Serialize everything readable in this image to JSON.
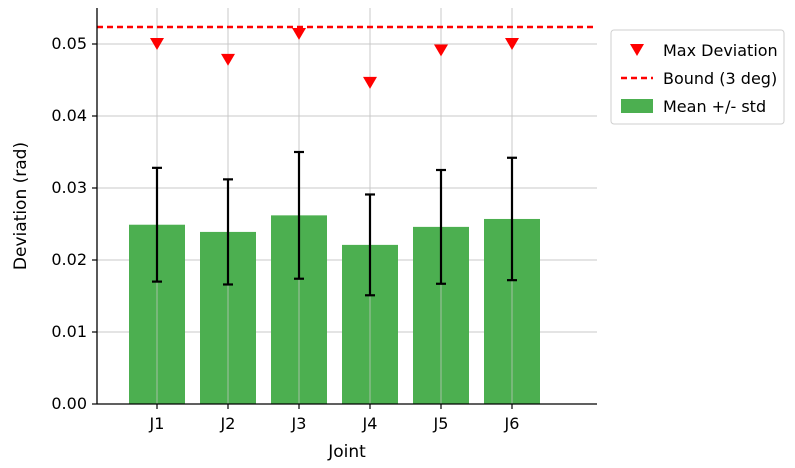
{
  "chart_data": {
    "type": "bar",
    "categories": [
      "J1",
      "J2",
      "J3",
      "J4",
      "J5",
      "J6"
    ],
    "series": [
      {
        "name": "Mean +/- std",
        "values": [
          0.0249,
          0.0239,
          0.0262,
          0.0221,
          0.0246,
          0.0257
        ],
        "std": [
          0.0079,
          0.0073,
          0.0088,
          0.007,
          0.0079,
          0.0085
        ],
        "color": "#4caf50"
      },
      {
        "name": "Max Deviation",
        "type": "scatter",
        "marker": "triangle-down",
        "values": [
          0.05,
          0.0478,
          0.0514,
          0.0446,
          0.0491,
          0.05
        ],
        "color": "#ff0000"
      },
      {
        "name": "Bound (3 deg)",
        "type": "hline",
        "value": 0.05236,
        "style": "dashed",
        "color": "#ff0000"
      }
    ],
    "xlabel": "Joint",
    "ylabel": "Deviation (rad)",
    "ylim": [
      0,
      0.055
    ],
    "yticks": [
      0.0,
      0.01,
      0.02,
      0.03,
      0.04,
      0.05
    ],
    "ytick_labels": [
      "0.00",
      "0.01",
      "0.02",
      "0.03",
      "0.04",
      "0.05"
    ],
    "grid": true,
    "legend_position": "top-right-outside",
    "legend": [
      "Max Deviation",
      "Bound (3 deg)",
      "Mean +/- std"
    ]
  }
}
